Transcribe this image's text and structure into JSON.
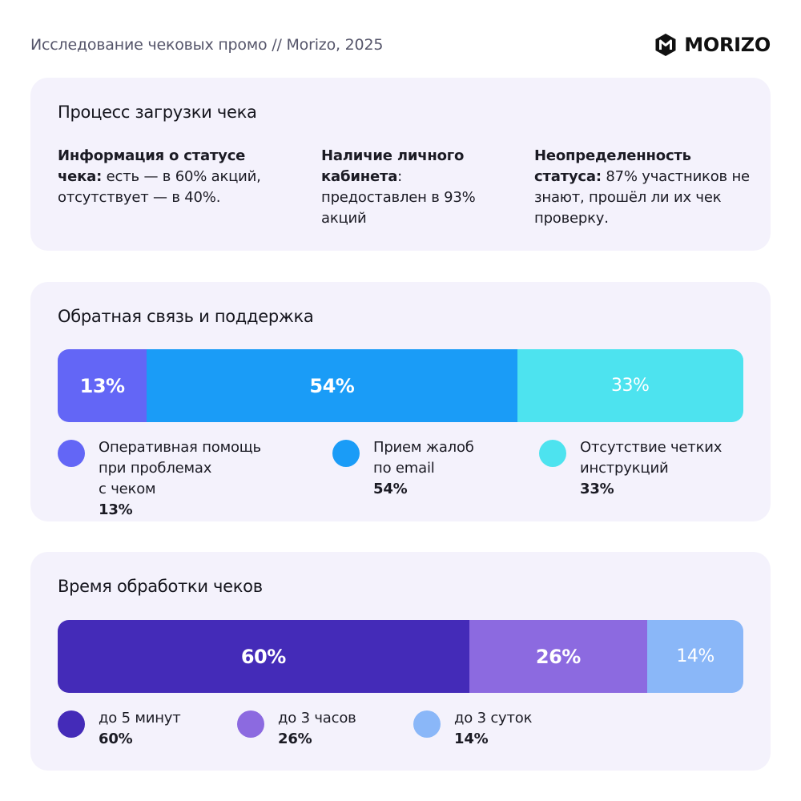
{
  "header": {
    "text": "Исследование чековых промо // Morizo, 2025",
    "logo_text": "MORIZO",
    "logo_icon": "hexagon-m-logo-icon"
  },
  "receipt_upload": {
    "title": "Процесс загрузки чека",
    "items": [
      {
        "bold": "Информация о статусе чека:",
        "text": " есть — в 60% акций, отсутствует — в 40%."
      },
      {
        "bold": "Наличие личного кабинета",
        "text": ": предоставлен в 93% акций"
      },
      {
        "bold": "Неопределенность статуса:",
        "text": " 87% участников не знают, прошёл ли их чек проверку."
      }
    ]
  },
  "chart_data": [
    {
      "type": "bar",
      "title": "Обратная связь и поддержка",
      "categories": [
        "Оперативная помощь при проблемах с чеком",
        "Прием жалоб по email",
        "Отсутствие четких инструкций"
      ],
      "values": [
        13,
        54,
        33
      ],
      "labels": [
        "13%",
        "54%",
        "33%"
      ],
      "colors": [
        "#6366f6",
        "#1a9cf7",
        "#4de3ef"
      ],
      "stacked": true
    },
    {
      "type": "bar",
      "title": "Время обработки чеков",
      "categories": [
        "до 5 минут",
        "до 3 часов",
        "до 3 суток"
      ],
      "values": [
        60,
        26,
        14
      ],
      "labels": [
        "60%",
        "26%",
        "14%"
      ],
      "colors": [
        "#442bb8",
        "#8c6ae0",
        "#8ab7f8"
      ],
      "stacked": true
    }
  ],
  "feedback": {
    "legend": [
      {
        "label": "Оперативная помощь\nпри проблемах\nс чеком",
        "value": "13%"
      },
      {
        "label": "Прием жалоб\nпо email",
        "value": "54%"
      },
      {
        "label": "Отсутствие четких\nинструкций",
        "value": "33%"
      }
    ]
  },
  "processing": {
    "legend": [
      {
        "label": "до 5 минут",
        "value": "60%"
      },
      {
        "label": "до 3 часов",
        "value": "26%"
      },
      {
        "label": "до 3 суток",
        "value": "14%"
      }
    ]
  }
}
